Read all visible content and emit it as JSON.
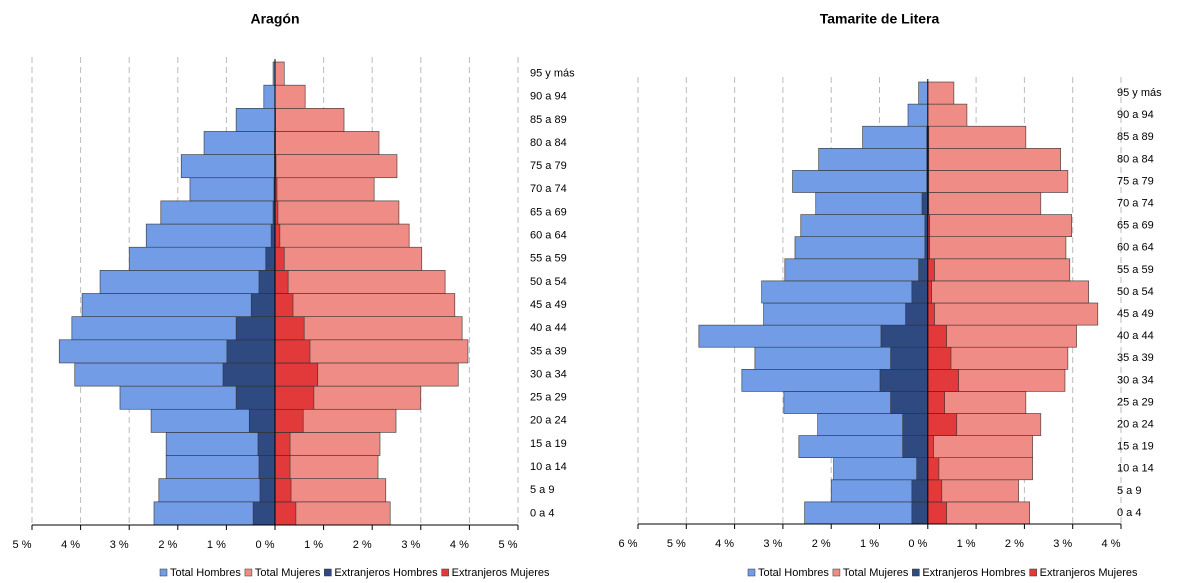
{
  "chart_data": [
    {
      "type": "pyramid",
      "title": "Aragón",
      "categories": [
        "0 a 4",
        "5 a 9",
        "10 a 14",
        "15 a 19",
        "20 a 24",
        "25 a 29",
        "30 a 34",
        "35 a 39",
        "40 a 44",
        "45 a 49",
        "50 a 54",
        "55 a 59",
        "60 a 64",
        "65 a 69",
        "70 a 74",
        "75 a 79",
        "80 a 84",
        "85 a 89",
        "90 a 94",
        "95 y más"
      ],
      "series": [
        {
          "name": "Total Hombres",
          "color": "#729de6",
          "values": [
            2.49,
            2.39,
            2.24,
            2.24,
            2.55,
            3.19,
            4.12,
            4.44,
            4.18,
            3.97,
            3.6,
            3.0,
            2.65,
            2.35,
            1.75,
            1.93,
            1.46,
            0.8,
            0.23,
            0.04
          ]
        },
        {
          "name": "Total Mujeres",
          "color": "#f08c86",
          "values": [
            2.37,
            2.28,
            2.12,
            2.16,
            2.49,
            3.0,
            3.77,
            3.97,
            3.85,
            3.7,
            3.5,
            3.02,
            2.76,
            2.55,
            2.04,
            2.51,
            2.14,
            1.42,
            0.62,
            0.19
          ]
        },
        {
          "name": "Extranjeros Hombres",
          "color": "#2e4a80",
          "values": [
            0.45,
            0.31,
            0.33,
            0.35,
            0.53,
            0.8,
            1.07,
            0.99,
            0.8,
            0.49,
            0.33,
            0.19,
            0.08,
            0.04,
            0.02,
            0.01,
            0.01,
            0,
            0,
            0
          ]
        },
        {
          "name": "Extranjeros Mujeres",
          "color": "#e23a3a",
          "values": [
            0.43,
            0.33,
            0.31,
            0.31,
            0.58,
            0.8,
            0.88,
            0.72,
            0.6,
            0.37,
            0.27,
            0.19,
            0.1,
            0.06,
            0.04,
            0.02,
            0.01,
            0.01,
            0,
            0
          ]
        }
      ],
      "xlim": [
        -5,
        5
      ],
      "xticks": [
        {
          "value": -5,
          "label": "5 %"
        },
        {
          "value": -4,
          "label": "4 %"
        },
        {
          "value": -3,
          "label": "3 %"
        },
        {
          "value": -2,
          "label": "2 %"
        },
        {
          "value": -1,
          "label": "1 %"
        },
        {
          "value": 0,
          "label": "0 %"
        },
        {
          "value": 1,
          "label": "1 %"
        },
        {
          "value": 2,
          "label": "2 %"
        },
        {
          "value": 3,
          "label": "3 %"
        },
        {
          "value": 4,
          "label": "4 %"
        },
        {
          "value": 5,
          "label": "5 %"
        }
      ],
      "grid": true
    },
    {
      "type": "pyramid",
      "title": "Tamarite de Litera",
      "categories": [
        "0 a 4",
        "5 a 9",
        "10 a 14",
        "15 a 19",
        "20 a 24",
        "25 a 29",
        "30 a 34",
        "35 a 39",
        "40 a 44",
        "45 a 49",
        "50 a 54",
        "55 a 59",
        "60 a 64",
        "65 a 69",
        "70 a 74",
        "75 a 79",
        "80 a 84",
        "85 a 89",
        "90 a 94",
        "95 y más"
      ],
      "series": [
        {
          "name": "Total Hombres",
          "color": "#729de6",
          "values": [
            2.55,
            2.0,
            1.95,
            2.67,
            2.28,
            2.98,
            3.85,
            3.58,
            4.74,
            3.4,
            3.44,
            2.96,
            2.75,
            2.63,
            2.32,
            2.8,
            2.26,
            1.35,
            0.41,
            0.19
          ]
        },
        {
          "name": "Total Mujeres",
          "color": "#f08c86",
          "values": [
            2.11,
            1.88,
            2.17,
            2.17,
            2.34,
            2.03,
            2.84,
            2.9,
            3.08,
            3.52,
            3.33,
            2.94,
            2.86,
            2.98,
            2.34,
            2.9,
            2.75,
            2.03,
            0.81,
            0.54
          ]
        },
        {
          "name": "Extranjeros Hombres",
          "color": "#2e4a80",
          "values": [
            0.33,
            0.33,
            0.23,
            0.52,
            0.52,
            0.77,
            0.99,
            0.77,
            0.97,
            0.46,
            0.33,
            0.19,
            0.06,
            0.06,
            0.12,
            0.02,
            0.02,
            0.02,
            0,
            0
          ]
        },
        {
          "name": "Extranjeros Mujeres",
          "color": "#e23a3a",
          "values": [
            0.39,
            0.29,
            0.23,
            0.12,
            0.6,
            0.35,
            0.64,
            0.48,
            0.39,
            0.14,
            0.08,
            0.14,
            0.04,
            0.04,
            0.02,
            0.02,
            0.02,
            0.02,
            0,
            0
          ]
        }
      ],
      "xlim": [
        -6,
        4
      ],
      "xticks": [
        {
          "value": -6,
          "label": "6 %"
        },
        {
          "value": -5,
          "label": "5 %"
        },
        {
          "value": -4,
          "label": "4 %"
        },
        {
          "value": -3,
          "label": "3 %"
        },
        {
          "value": -2,
          "label": "2 %"
        },
        {
          "value": -1,
          "label": "1 %"
        },
        {
          "value": 0,
          "label": "0 %"
        },
        {
          "value": 1,
          "label": "1 %"
        },
        {
          "value": 2,
          "label": "2 %"
        },
        {
          "value": 3,
          "label": "3 %"
        },
        {
          "value": 4,
          "label": "4 %"
        }
      ],
      "grid": true
    }
  ]
}
